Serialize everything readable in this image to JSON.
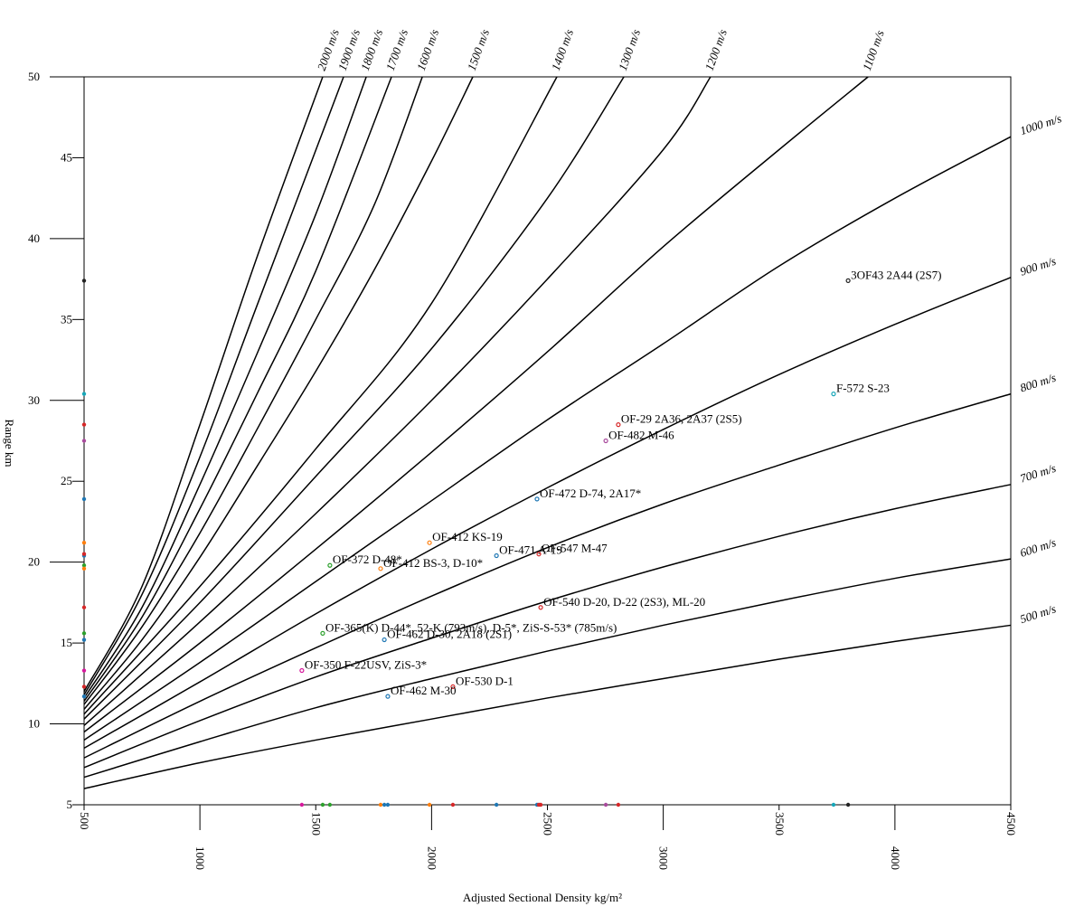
{
  "chart_data": {
    "type": "scatter",
    "xlabel": "Adjusted Sectional Density kg/m²",
    "ylabel": "Range km",
    "xlim": [
      500,
      4500
    ],
    "ylim": [
      5,
      50
    ],
    "xticks": [
      500,
      1000,
      1500,
      2000,
      2500,
      3000,
      3500,
      4000,
      4500
    ],
    "yticks": [
      5,
      10,
      15,
      20,
      25,
      30,
      35,
      40,
      45,
      50
    ],
    "series": [
      {
        "name": "500 m/s",
        "color": "#000000",
        "x": [
          500,
          1000,
          1500,
          2000,
          2500,
          3000,
          3500,
          4000,
          4500
        ],
        "values": [
          6.0,
          7.6,
          9.0,
          10.3,
          11.6,
          12.8,
          14.0,
          15.1,
          16.1
        ]
      },
      {
        "name": "600 m/s",
        "color": "#000000",
        "x": [
          500,
          1000,
          1500,
          2000,
          2500,
          3000,
          3500,
          4000,
          4500
        ],
        "values": [
          6.7,
          8.9,
          11.0,
          12.8,
          14.5,
          16.1,
          17.6,
          19.0,
          20.2
        ]
      },
      {
        "name": "700 m/s",
        "color": "#000000",
        "x": [
          500,
          1000,
          1500,
          2000,
          2500,
          3000,
          3500,
          4000,
          4500
        ],
        "values": [
          7.3,
          10.2,
          12.9,
          15.3,
          17.6,
          19.7,
          21.6,
          23.3,
          24.8
        ]
      },
      {
        "name": "800 m/s",
        "color": "#000000",
        "x": [
          500,
          1000,
          1500,
          2000,
          2500,
          3000,
          3500,
          4000,
          4500
        ],
        "values": [
          7.9,
          11.4,
          14.7,
          17.9,
          20.9,
          23.6,
          26.0,
          28.3,
          30.4
        ]
      },
      {
        "name": "900 m/s",
        "color": "#000000",
        "x": [
          500,
          1000,
          1500,
          2000,
          2500,
          3000,
          3500,
          4000,
          4500
        ],
        "values": [
          8.5,
          12.6,
          16.8,
          20.8,
          24.6,
          28.2,
          31.6,
          34.7,
          37.6
        ]
      },
      {
        "name": "1000 m/s",
        "color": "#000000",
        "x": [
          500,
          1000,
          1500,
          2000,
          2500,
          3000,
          3500,
          4000,
          4500
        ],
        "values": [
          9.0,
          13.8,
          18.8,
          23.8,
          28.8,
          33.5,
          38.3,
          42.5,
          46.3
        ]
      },
      {
        "name": "1100 m/s",
        "color": "#000000",
        "x": [
          500,
          1000,
          1500,
          2000,
          2500,
          3000,
          3500,
          3884
        ],
        "values": [
          9.5,
          15.0,
          20.8,
          26.8,
          33.0,
          39.5,
          45.5,
          50
        ]
      },
      {
        "name": "1200 m/s",
        "color": "#000000",
        "x": [
          500,
          1000,
          1500,
          2000,
          2500,
          3000,
          3204
        ],
        "values": [
          9.9,
          16.3,
          23.0,
          30.0,
          37.5,
          45.5,
          50
        ]
      },
      {
        "name": "1300 m/s",
        "color": "#000000",
        "x": [
          500,
          1000,
          1500,
          2000,
          2500,
          2830
        ],
        "values": [
          10.3,
          17.5,
          25.3,
          33.2,
          42.5,
          50
        ]
      },
      {
        "name": "1400 m/s",
        "color": "#000000",
        "x": [
          500,
          1000,
          1500,
          2000,
          2541
        ],
        "values": [
          10.6,
          18.5,
          27.0,
          36.0,
          50
        ]
      },
      {
        "name": "1500 m/s",
        "color": "#000000",
        "x": [
          500,
          750,
          1000,
          1250,
          1500,
          1750,
          2000,
          2178
        ],
        "values": [
          10.9,
          15.2,
          20.3,
          26.0,
          31.8,
          38.0,
          44.8,
          50
        ]
      },
      {
        "name": "1600 m/s",
        "color": "#000000",
        "x": [
          500,
          750,
          1000,
          1250,
          1500,
          1750,
          1960
        ],
        "values": [
          11.2,
          16.0,
          21.8,
          28.3,
          35.0,
          42.0,
          50
        ]
      },
      {
        "name": "1700 m/s",
        "color": "#000000",
        "x": [
          500,
          750,
          1000,
          1250,
          1500,
          1827
        ],
        "values": [
          11.4,
          16.6,
          23.3,
          30.5,
          38.0,
          50
        ]
      },
      {
        "name": "1800 m/s",
        "color": "#000000",
        "x": [
          500,
          750,
          1000,
          1250,
          1500,
          1718
        ],
        "values": [
          11.6,
          17.2,
          24.8,
          33.0,
          41.5,
          50
        ]
      },
      {
        "name": "1900 m/s",
        "color": "#000000",
        "x": [
          500,
          750,
          1000,
          1250,
          1620
        ],
        "values": [
          11.8,
          18.0,
          26.5,
          36.0,
          50
        ]
      },
      {
        "name": "2000 m/s",
        "color": "#000000",
        "x": [
          500,
          750,
          1000,
          1250,
          1530
        ],
        "values": [
          12.0,
          18.5,
          28.5,
          39.0,
          50
        ]
      }
    ],
    "points": [
      {
        "label": "3OF43 2A44 (2S7)",
        "x": 3798,
        "y": 37.4,
        "color": "#222222"
      },
      {
        "label": "F-572 S-23",
        "x": 3735,
        "y": 30.4,
        "color": "#17a6b8"
      },
      {
        "label": "OF-29 2A36, 2A37 (2S5)",
        "x": 2806,
        "y": 28.5,
        "color": "#d62728"
      },
      {
        "label": "OF-482 M-46",
        "x": 2752,
        "y": 27.5,
        "color": "#a84a9c"
      },
      {
        "label": "OF-472 D-74, 2A17*",
        "x": 2455,
        "y": 23.9,
        "color": "#1f77b4"
      },
      {
        "label": "OF-412 KS-19",
        "x": 1991,
        "y": 21.2,
        "color": "#ff7f0e"
      },
      {
        "label": "OF-471 A-19",
        "x": 2280,
        "y": 20.4,
        "color": "#1f77b4"
      },
      {
        "label": "OF-547 M-47",
        "x": 2463,
        "y": 20.5,
        "color": "#d62728"
      },
      {
        "label": "OF-372 D-48*",
        "x": 1561,
        "y": 19.8,
        "color": "#2ca02c"
      },
      {
        "label": "OF-412 BS-3, D-10*",
        "x": 1780,
        "y": 19.6,
        "color": "#ff7f0e"
      },
      {
        "label": "OF-540 D-20, D-22 (2S3), ML-20",
        "x": 2471,
        "y": 17.2,
        "color": "#d62728"
      },
      {
        "label": "OF-365(K) D-44*, 52-K (793m/s), D-5*, ZiS-S-53* (785m/s)",
        "x": 1530,
        "y": 15.6,
        "color": "#2ca02c"
      },
      {
        "label": "OF-462 D-30, 2A18 (2S1)",
        "x": 1796,
        "y": 15.2,
        "color": "#1f77b4"
      },
      {
        "label": "OF-350 F-22USV, ZiS-3*",
        "x": 1440,
        "y": 13.3,
        "color": "#d6189c"
      },
      {
        "label": "OF-530 D-1",
        "x": 2092,
        "y": 12.3,
        "color": "#d62728"
      },
      {
        "label": "OF-462 M-30",
        "x": 1811,
        "y": 11.7,
        "color": "#1f77b4"
      }
    ]
  }
}
